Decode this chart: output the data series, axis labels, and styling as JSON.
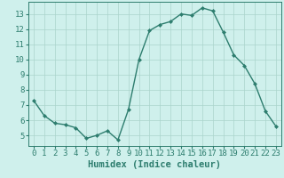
{
  "x": [
    0,
    1,
    2,
    3,
    4,
    5,
    6,
    7,
    8,
    9,
    10,
    11,
    12,
    13,
    14,
    15,
    16,
    17,
    18,
    19,
    20,
    21,
    22,
    23
  ],
  "y": [
    7.3,
    6.3,
    5.8,
    5.7,
    5.5,
    4.8,
    5.0,
    5.3,
    4.7,
    6.7,
    10.0,
    11.9,
    12.3,
    12.5,
    13.0,
    12.9,
    13.4,
    13.2,
    11.8,
    10.3,
    9.6,
    8.4,
    6.6,
    5.6
  ],
  "line_color": "#2d7d6e",
  "marker": "D",
  "marker_size": 2.0,
  "background_color": "#cff0ec",
  "plot_bg_color": "#cff0ec",
  "grid_color": "#aad4cc",
  "xlabel": "Humidex (Indice chaleur)",
  "ylim": [
    4.3,
    13.8
  ],
  "xlim": [
    -0.5,
    23.5
  ],
  "yticks": [
    5,
    6,
    7,
    8,
    9,
    10,
    11,
    12,
    13
  ],
  "xticks": [
    0,
    1,
    2,
    3,
    4,
    5,
    6,
    7,
    8,
    9,
    10,
    11,
    12,
    13,
    14,
    15,
    16,
    17,
    18,
    19,
    20,
    21,
    22,
    23
  ],
  "xtick_labels": [
    "0",
    "1",
    "2",
    "3",
    "4",
    "5",
    "6",
    "7",
    "8",
    "9",
    "10",
    "11",
    "12",
    "13",
    "14",
    "15",
    "16",
    "17",
    "18",
    "19",
    "20",
    "21",
    "22",
    "23"
  ],
  "tick_color": "#2d7d6e",
  "label_color": "#2d7d6e",
  "spine_color": "#2d7d6e",
  "tick_fontsize": 6.5,
  "xlabel_fontsize": 7.5,
  "linewidth": 1.0,
  "bottom_bar_color": "#5aafa0"
}
